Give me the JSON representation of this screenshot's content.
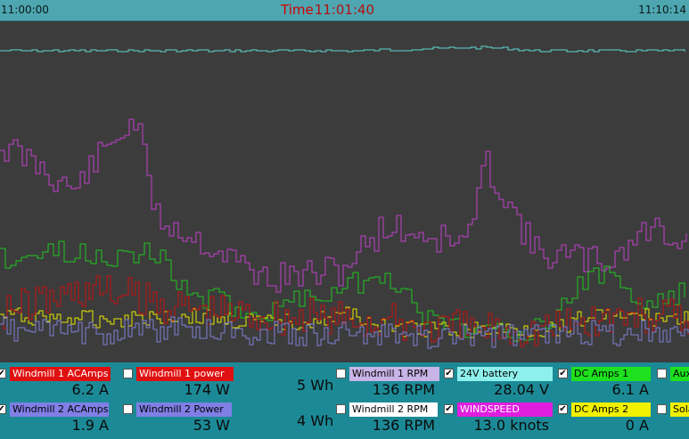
{
  "header": {
    "start_time": "11:00:00",
    "time_label": "Time",
    "current_time": "11:01:40",
    "end_time": "11:10:14"
  },
  "colors": {
    "background": "#3c3c3c",
    "header": "#4ea6b0",
    "panel": "#1c8a96",
    "cyan": "#5fd6d0",
    "magenta": "#c23fcc",
    "green": "#1fc61f",
    "yellow": "#e6e600",
    "red": "#c81010",
    "blue": "#7f7fd6"
  },
  "energy": {
    "row1": "5 Wh",
    "row2": "4 Wh"
  },
  "legends": [
    {
      "id": "wm1-acamps",
      "label": "Windmill 1 ACAmps",
      "checked": true,
      "bg": "#e01010",
      "fg": "#ffffff",
      "value": "6.2 A"
    },
    {
      "id": "wm1-power",
      "label": "Windmill 1 power",
      "checked": false,
      "bg": "#e01010",
      "fg": "#ffffff",
      "value": "174 W"
    },
    {
      "id": "wm1-rpm",
      "label": "Windmill 1 RPM",
      "checked": false,
      "bg": "#c8b4e6",
      "fg": "#000000",
      "value": "136 RPM"
    },
    {
      "id": "battery-24v",
      "label": "24V battery",
      "checked": true,
      "bg": "#8ef0ec",
      "fg": "#000000",
      "value": "28.04 V"
    },
    {
      "id": "dc-amps-1",
      "label": "DC Amps 1",
      "checked": true,
      "bg": "#1ee01e",
      "fg": "#000000",
      "value": "6.1 A"
    },
    {
      "id": "aux",
      "label": "Aux",
      "checked": false,
      "bg": "#1ee01e",
      "fg": "#000000",
      "value": ""
    },
    {
      "id": "wm2-acamps",
      "label": "Windmill 2 ACAmps",
      "checked": true,
      "bg": "#7f7fe6",
      "fg": "#000000",
      "value": "1.9 A"
    },
    {
      "id": "wm2-power",
      "label": "Windmill 2 Power",
      "checked": false,
      "bg": "#7f7fe6",
      "fg": "#000000",
      "value": "53 W"
    },
    {
      "id": "wm2-rpm",
      "label": "Windmill 2 RPM",
      "checked": false,
      "bg": "#ffffff",
      "fg": "#000000",
      "value": "136 RPM"
    },
    {
      "id": "windspeed",
      "label": "WINDSPEED",
      "checked": true,
      "bg": "#e01ee0",
      "fg": "#ffffff",
      "value": "13.0  knots"
    },
    {
      "id": "dc-amps-2",
      "label": "DC Amps 2",
      "checked": true,
      "bg": "#f0f000",
      "fg": "#000000",
      "value": "0 A"
    },
    {
      "id": "solar",
      "label": "Sola",
      "checked": false,
      "bg": "#f0f000",
      "fg": "#000000",
      "value": ""
    }
  ],
  "series_styles": [
    {
      "name": "24V battery",
      "color": "#5fd6d0"
    },
    {
      "name": "WINDSPEED",
      "color": "#c23fcc"
    },
    {
      "name": "DC Amps 1",
      "color": "#1fc61f"
    },
    {
      "name": "DC Amps 2",
      "color": "#e6e600"
    },
    {
      "name": "Windmill 1 ACAmps",
      "color": "#c81010"
    },
    {
      "name": "Windmill 2 ACAmps",
      "color": "#7f7fd6"
    }
  ]
}
